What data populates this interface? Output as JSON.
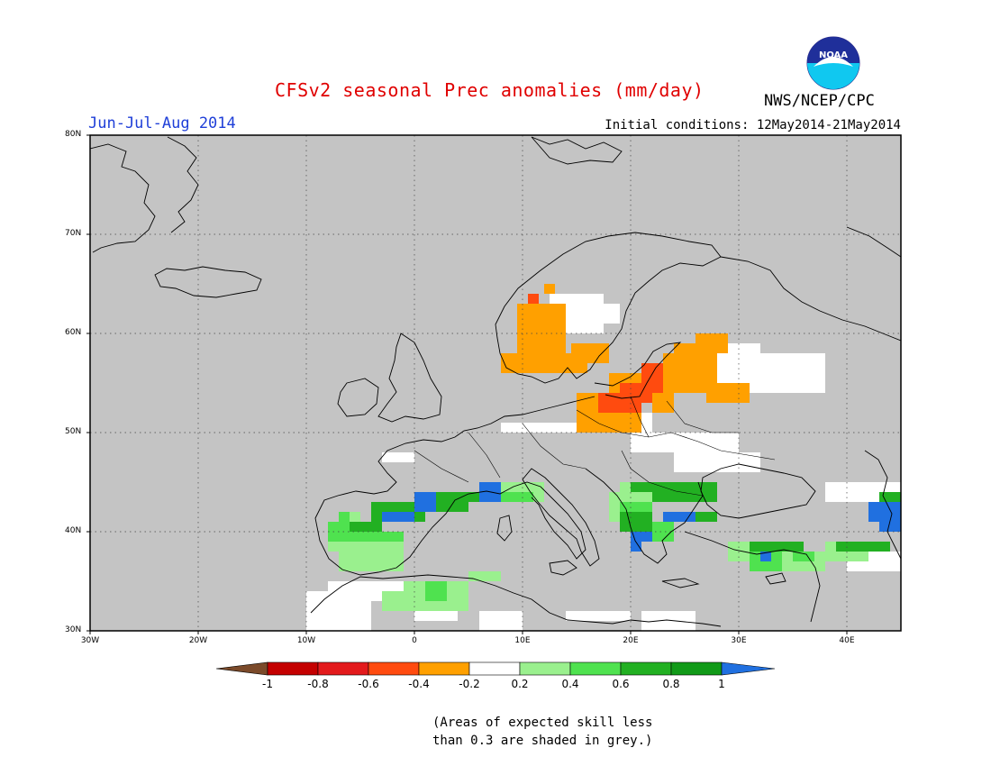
{
  "header": {
    "title": "CFSv2 seasonal Prec anomalies (mm/day)",
    "period": "Jun-Jul-Aug 2014",
    "initial_conditions": "Initial conditions: 12May2014-21May2014",
    "agency": "NWS/NCEP/CPC",
    "logo_text": "NOAA"
  },
  "map": {
    "region": "Europe",
    "lon_range": [
      -30,
      45
    ],
    "lat_range": [
      30,
      80
    ],
    "lat_labels": [
      "80N",
      "70N",
      "60N",
      "50N",
      "40N",
      "30N"
    ],
    "lon_labels": [
      "30W",
      "20W",
      "10W",
      "0",
      "10E",
      "20E",
      "30E",
      "40E"
    ],
    "gridlines": true,
    "background_color": "#c4c4c4"
  },
  "colorbar": {
    "labels": [
      "-1",
      "-0.8",
      "-0.6",
      "-0.4",
      "-0.2",
      "0.2",
      "0.4",
      "0.6",
      "0.8",
      "1"
    ],
    "colors": {
      "lt_neg1": "#7b4a2a",
      "neg1_neg08": "#c40000",
      "neg08_neg06": "#e31a1c",
      "neg06_neg04": "#ff4b0f",
      "neg04_neg02": "#ffa000",
      "neutral": "#ffffff",
      "pos02_04": "#9af08e",
      "pos04_06": "#4fe24f",
      "pos06_08": "#22b022",
      "pos08_1": "#119a18",
      "gt1": "#2070e0"
    }
  },
  "note": {
    "line1": "(Areas of expected skill less",
    "line2": "than 0.3 are shaded in grey.)"
  }
}
